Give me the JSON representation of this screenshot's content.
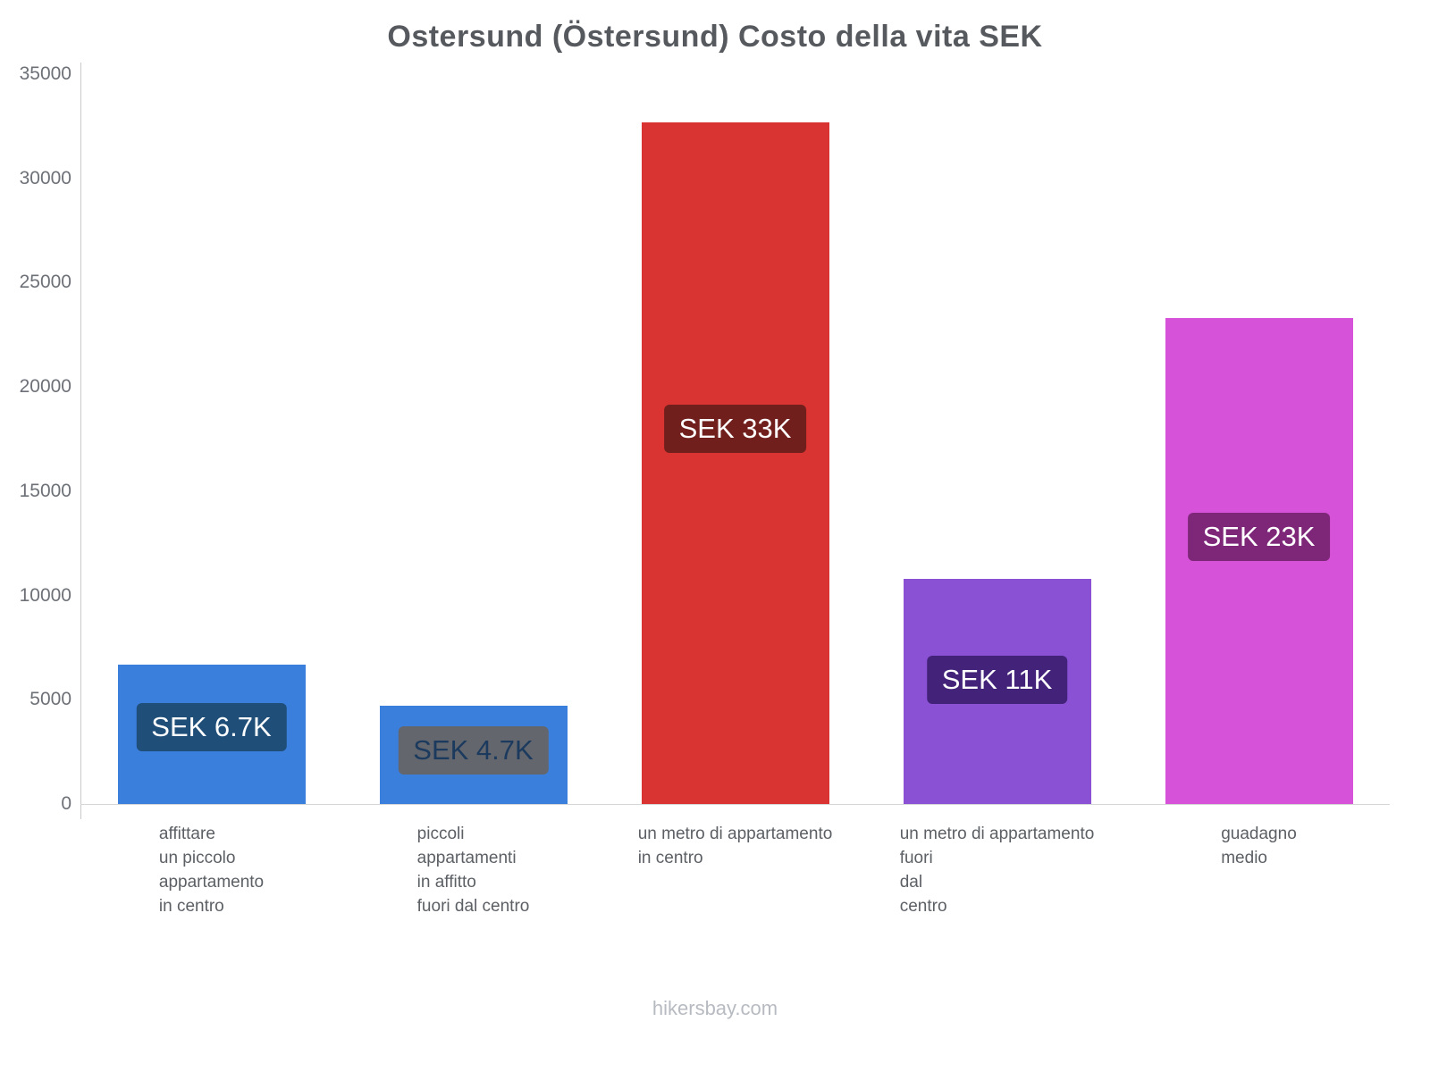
{
  "title": "Ostersund (Östersund) Costo della vita SEK",
  "footer": "hikersbay.com",
  "chart_data": {
    "type": "bar",
    "title": "Ostersund (Östersund) Costo della vita SEK",
    "categories": [
      "affittare un piccolo appartamento in centro",
      "piccoli appartamenti in affitto fuori dal centro",
      "un metro di appartamento in centro",
      "un metro di appartamento fuori dal centro",
      "guadagno medio"
    ],
    "category_lines": [
      [
        "affittare",
        "un piccolo",
        "appartamento",
        "in centro"
      ],
      [
        "piccoli",
        "appartamenti",
        "in affitto",
        "fuori dal centro"
      ],
      [
        "un metro di appartamento",
        "in centro"
      ],
      [
        "un metro di appartamento",
        "fuori",
        "dal",
        "centro"
      ],
      [
        "guadagno",
        "medio"
      ]
    ],
    "values": [
      6700,
      4700,
      32700,
      10800,
      23300
    ],
    "value_labels": [
      "SEK 6.7K",
      "SEK 4.7K",
      "SEK 33K",
      "SEK 11K",
      "SEK 23K"
    ],
    "bar_colors": [
      "#3b7fdd",
      "#3b7fdd",
      "#d93431",
      "#8a51d4",
      "#d652d8"
    ],
    "label_bg_colors": [
      "#1f4e79",
      "#63666d",
      "#701f1d",
      "#422379",
      "#7e2779"
    ],
    "label_text_colors": [
      "#ffffff",
      "#1b3a5e",
      "#ffffff",
      "#ffffff",
      "#ffffff"
    ],
    "currency": "SEK",
    "xlabel": "",
    "ylabel": "",
    "ylim": [
      0,
      35000
    ],
    "yticks": [
      0,
      5000,
      10000,
      15000,
      20000,
      25000,
      30000,
      35000
    ],
    "grid": false,
    "legend": false
  }
}
